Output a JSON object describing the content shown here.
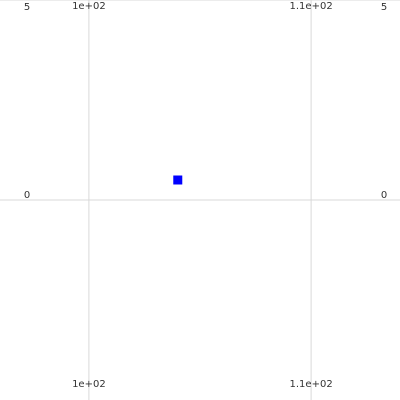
{
  "chart_data": {
    "type": "scatter",
    "title": "",
    "xlabel": "",
    "ylabel": "",
    "xlim": [
      96,
      114
    ],
    "ylim": [
      -5,
      5
    ],
    "grid": true,
    "legend": "none",
    "x_ticks": [
      {
        "value": 100,
        "label": "1e+02"
      },
      {
        "value": 110,
        "label": "1.1e+02"
      }
    ],
    "y_ticks": [
      {
        "value": 0,
        "label": "0"
      },
      {
        "value": 5,
        "label": "5"
      }
    ],
    "series": [
      {
        "color": "#0000ff",
        "marker": "square",
        "points": [
          {
            "x": 104,
            "y": 0.5
          }
        ]
      }
    ]
  }
}
